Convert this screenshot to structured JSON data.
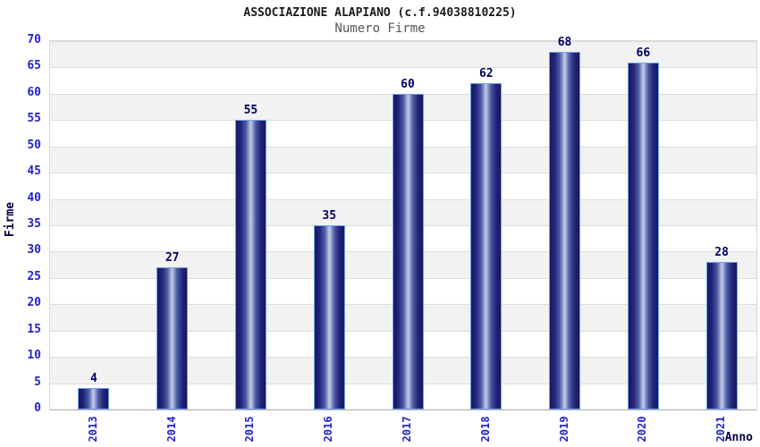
{
  "header": {
    "title": "ASSOCIAZIONE ALAPIANO (c.f.94038810225)",
    "subtitle": "Numero Firme"
  },
  "chart_data": {
    "type": "bar",
    "title": "ASSOCIAZIONE ALAPIANO (c.f.94038810225)",
    "subtitle": "Numero Firme",
    "categories": [
      "2013",
      "2014",
      "2015",
      "2016",
      "2017",
      "2018",
      "2019",
      "2020",
      "2021"
    ],
    "values": [
      4,
      27,
      55,
      35,
      60,
      62,
      68,
      66,
      28
    ],
    "xlabel": "Anno",
    "ylabel": "Firme",
    "ylim": [
      0,
      70
    ],
    "ytick_step": 5,
    "grid": true,
    "legend_position": "none",
    "band_pattern": "alternating gray/white horizontal bands of 5 units, gray from 5-10 up to 65-70"
  },
  "colors": {
    "title": "#1a1a1a",
    "subtitle": "#555555",
    "axis_tick_blue": "#2323cc",
    "value_label_navy": "#000066",
    "axis_title_navy": "#000040",
    "band_gray": "#f2f2f2",
    "gridline": "#dcdcdc",
    "bar_edge_navy": "#18185f",
    "bar_mid": "#4d5da5",
    "bar_center_light": "#c4cdе8",
    "bar_border_lightblue": "#6ba3ea",
    "background": "#ffffff"
  }
}
